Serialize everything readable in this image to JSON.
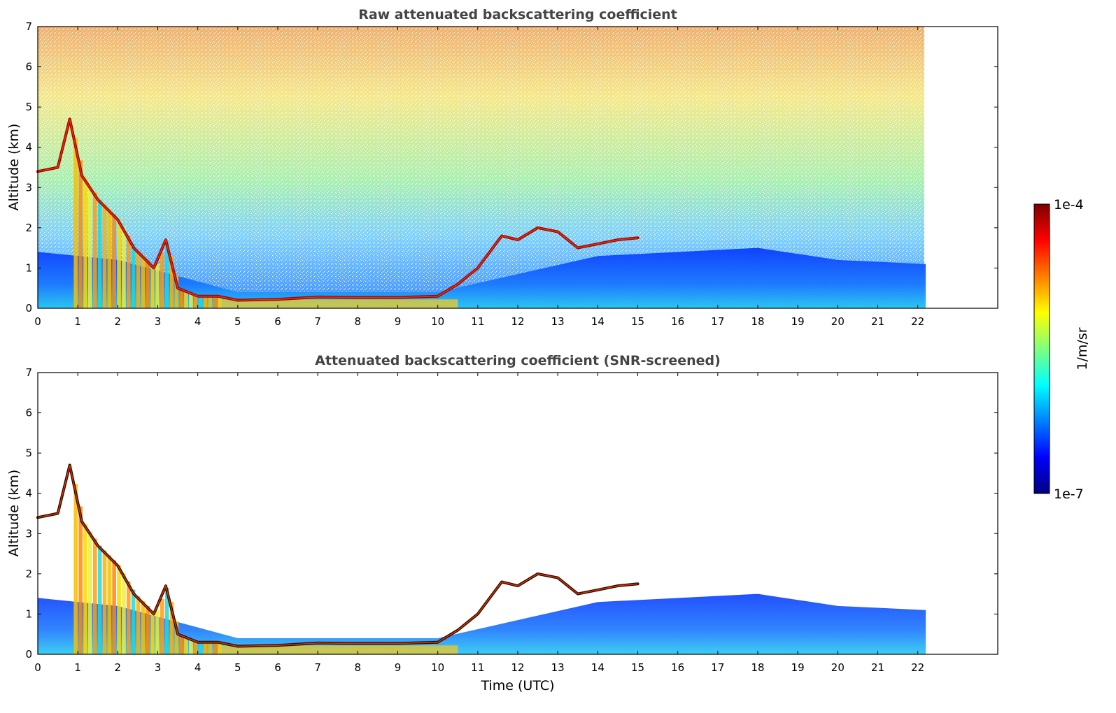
{
  "colors": {
    "jet": [
      "#00007f",
      "#0000ff",
      "#007fff",
      "#00ffff",
      "#7fff7f",
      "#ffff00",
      "#ff7f00",
      "#ff0000",
      "#7f0000"
    ],
    "axes": "#000000",
    "title_text": "#444444"
  },
  "colorbar": {
    "label": "1/m/sr",
    "min_label": "1e-7",
    "max_label": "1e-4",
    "scale": "log",
    "range": [
      1e-07,
      0.0001
    ]
  },
  "chart_data": [
    {
      "type": "heatmap",
      "title": "Raw attenuated backscattering coefficient",
      "xlabel": "",
      "ylabel": "Altitude (km)",
      "xlim": [
        0,
        24
      ],
      "ylim": [
        0,
        7
      ],
      "data_extent_x": [
        0,
        22.2
      ],
      "xticks": [
        "0",
        "1",
        "2",
        "3",
        "4",
        "5",
        "6",
        "7",
        "8",
        "9",
        "10",
        "11",
        "12",
        "13",
        "14",
        "15",
        "16",
        "17",
        "18",
        "19",
        "20",
        "21",
        "22"
      ],
      "yticks": [
        "0",
        "1",
        "2",
        "3",
        "4",
        "5",
        "6",
        "7"
      ],
      "cloud_layer": [
        {
          "t": 0.0,
          "alt": 3.4
        },
        {
          "t": 0.5,
          "alt": 3.5
        },
        {
          "t": 0.8,
          "alt": 4.7
        },
        {
          "t": 1.1,
          "alt": 3.3
        },
        {
          "t": 1.5,
          "alt": 2.7
        },
        {
          "t": 2.0,
          "alt": 2.2
        },
        {
          "t": 2.4,
          "alt": 1.5
        },
        {
          "t": 2.9,
          "alt": 1.0
        },
        {
          "t": 3.2,
          "alt": 1.7
        },
        {
          "t": 3.5,
          "alt": 0.5
        },
        {
          "t": 4.0,
          "alt": 0.3
        },
        {
          "t": 4.5,
          "alt": 0.3
        },
        {
          "t": 5.0,
          "alt": 0.2
        },
        {
          "t": 6.0,
          "alt": 0.22
        },
        {
          "t": 7.0,
          "alt": 0.28
        },
        {
          "t": 8.0,
          "alt": 0.27
        },
        {
          "t": 9.0,
          "alt": 0.27
        },
        {
          "t": 10.0,
          "alt": 0.3
        },
        {
          "t": 10.5,
          "alt": 0.6
        },
        {
          "t": 11.0,
          "alt": 1.0
        },
        {
          "t": 11.6,
          "alt": 1.8
        },
        {
          "t": 12.0,
          "alt": 1.7
        },
        {
          "t": 12.5,
          "alt": 2.0
        },
        {
          "t": 13.0,
          "alt": 1.9
        },
        {
          "t": 13.5,
          "alt": 1.5
        },
        {
          "t": 14.0,
          "alt": 1.6
        },
        {
          "t": 14.5,
          "alt": 1.7
        },
        {
          "t": 15.0,
          "alt": 1.75
        }
      ],
      "boundary_layer_top": [
        {
          "t": 0.0,
          "alt": 1.4
        },
        {
          "t": 2.0,
          "alt": 1.2
        },
        {
          "t": 5.0,
          "alt": 0.4
        },
        {
          "t": 10.0,
          "alt": 0.4
        },
        {
          "t": 14.0,
          "alt": 1.3
        },
        {
          "t": 18.0,
          "alt": 1.5
        },
        {
          "t": 20.0,
          "alt": 1.2
        },
        {
          "t": 22.2,
          "alt": 1.1
        }
      ]
    },
    {
      "type": "heatmap",
      "title": "Attenuated backscattering coefficient (SNR-screened)",
      "xlabel": "Time (UTC)",
      "ylabel": "Altitude (km)",
      "xlim": [
        0,
        24
      ],
      "ylim": [
        0,
        7
      ],
      "data_extent_x": [
        0,
        22.2
      ],
      "xticks": [
        "0",
        "1",
        "2",
        "3",
        "4",
        "5",
        "6",
        "7",
        "8",
        "9",
        "10",
        "11",
        "12",
        "13",
        "14",
        "15",
        "16",
        "17",
        "18",
        "19",
        "20",
        "21",
        "22"
      ],
      "yticks": [
        "0",
        "1",
        "2",
        "3",
        "4",
        "5",
        "6",
        "7"
      ],
      "cloud_layer": [
        {
          "t": 0.0,
          "alt": 3.4
        },
        {
          "t": 0.5,
          "alt": 3.5
        },
        {
          "t": 0.8,
          "alt": 4.7
        },
        {
          "t": 1.1,
          "alt": 3.3
        },
        {
          "t": 1.5,
          "alt": 2.7
        },
        {
          "t": 2.0,
          "alt": 2.2
        },
        {
          "t": 2.4,
          "alt": 1.5
        },
        {
          "t": 2.9,
          "alt": 1.0
        },
        {
          "t": 3.2,
          "alt": 1.7
        },
        {
          "t": 3.5,
          "alt": 0.5
        },
        {
          "t": 4.0,
          "alt": 0.3
        },
        {
          "t": 4.5,
          "alt": 0.3
        },
        {
          "t": 5.0,
          "alt": 0.2
        },
        {
          "t": 6.0,
          "alt": 0.22
        },
        {
          "t": 7.0,
          "alt": 0.28
        },
        {
          "t": 8.0,
          "alt": 0.27
        },
        {
          "t": 9.0,
          "alt": 0.27
        },
        {
          "t": 10.0,
          "alt": 0.3
        },
        {
          "t": 10.5,
          "alt": 0.6
        },
        {
          "t": 11.0,
          "alt": 1.0
        },
        {
          "t": 11.6,
          "alt": 1.8
        },
        {
          "t": 12.0,
          "alt": 1.7
        },
        {
          "t": 12.5,
          "alt": 2.0
        },
        {
          "t": 13.0,
          "alt": 1.9
        },
        {
          "t": 13.5,
          "alt": 1.5
        },
        {
          "t": 14.0,
          "alt": 1.6
        },
        {
          "t": 14.5,
          "alt": 1.7
        },
        {
          "t": 15.0,
          "alt": 1.75
        }
      ],
      "boundary_layer_top": [
        {
          "t": 0.0,
          "alt": 1.4
        },
        {
          "t": 2.0,
          "alt": 1.2
        },
        {
          "t": 5.0,
          "alt": 0.4
        },
        {
          "t": 10.0,
          "alt": 0.4
        },
        {
          "t": 14.0,
          "alt": 1.3
        },
        {
          "t": 18.0,
          "alt": 1.5
        },
        {
          "t": 20.0,
          "alt": 1.2
        },
        {
          "t": 22.2,
          "alt": 1.1
        }
      ]
    }
  ]
}
